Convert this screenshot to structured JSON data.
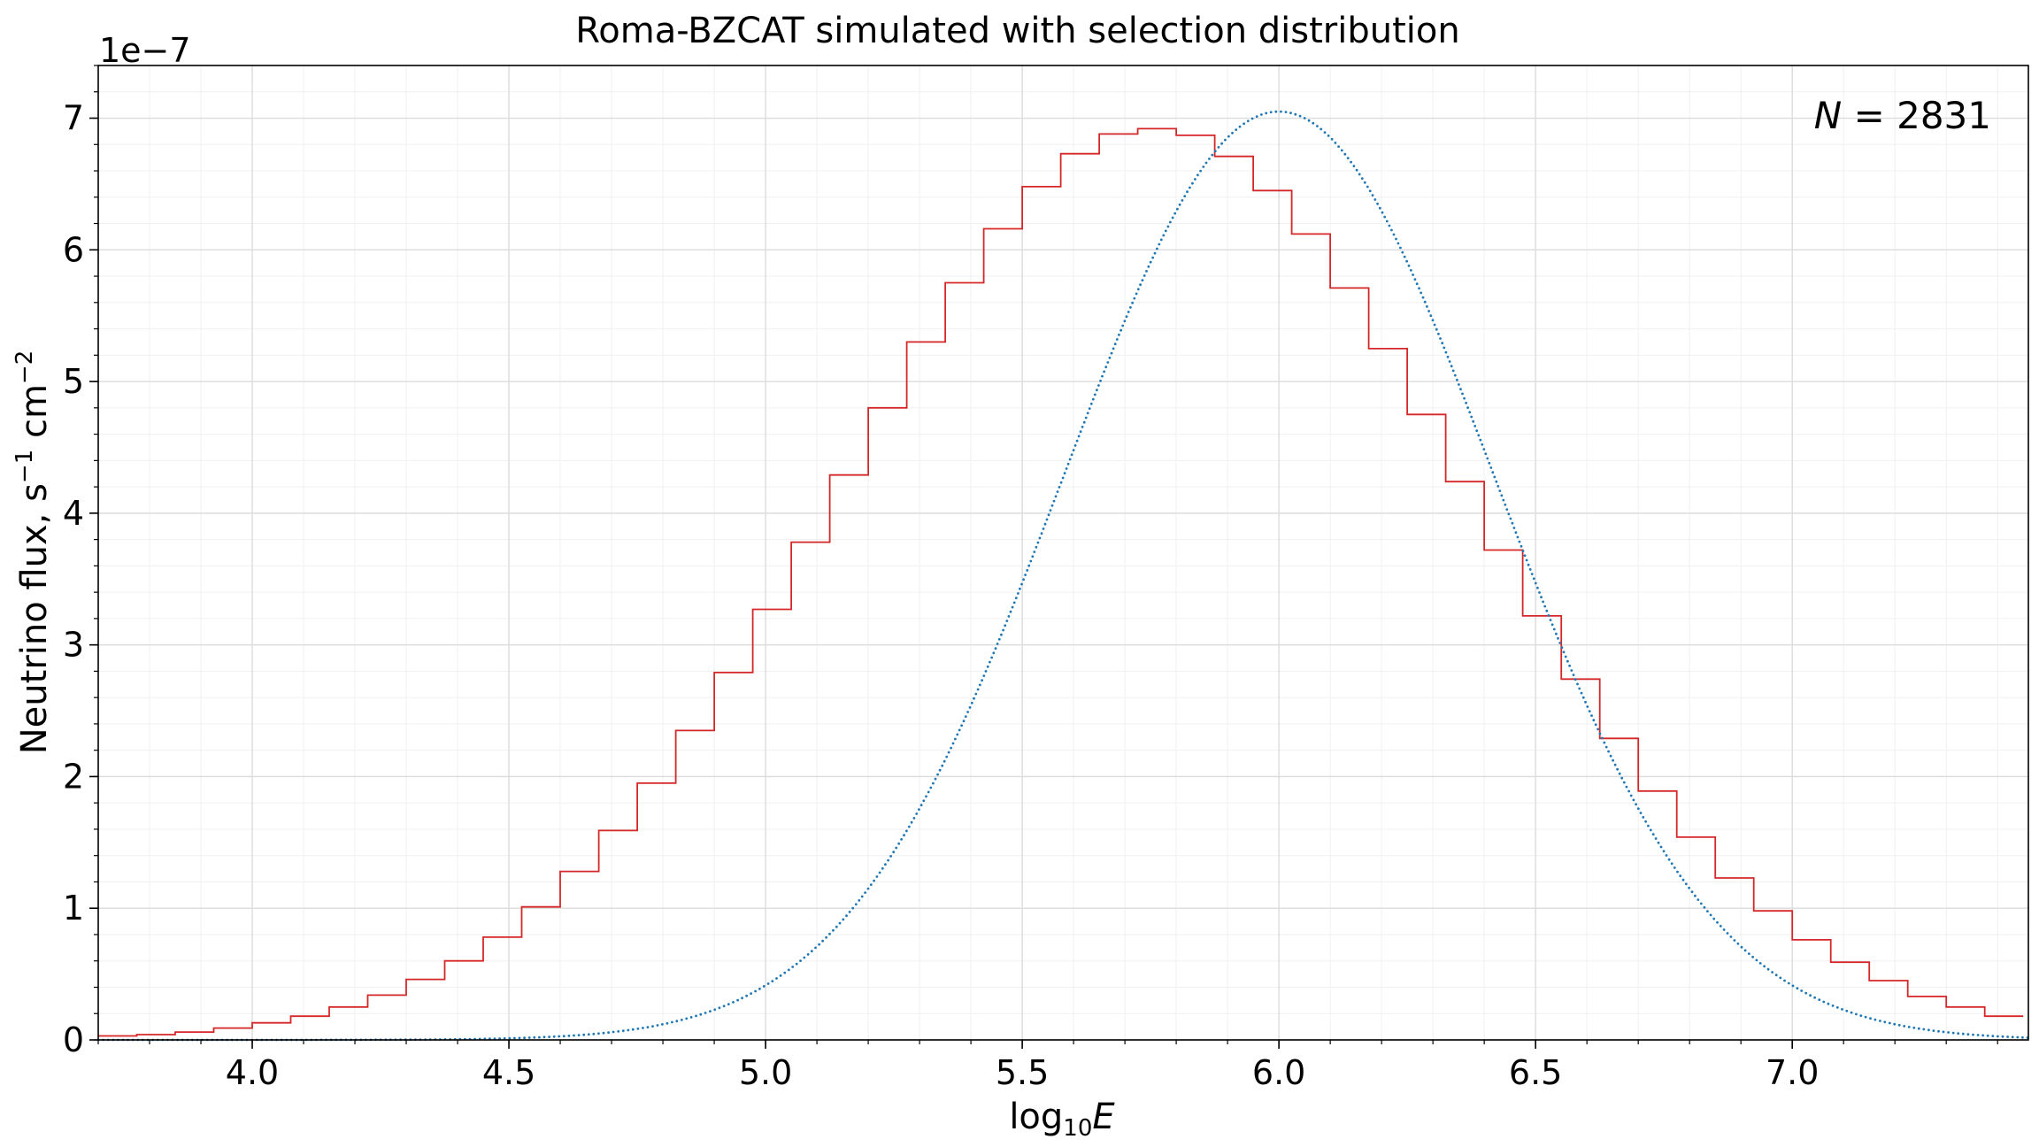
{
  "chart_data": {
    "type": "line",
    "title": "Roma-BZCAT simulated with selection distribution",
    "xlabel": {
      "base": "log",
      "subscript": "10",
      "var": "E"
    },
    "ylabel": {
      "main": "Neutrino flux, s",
      "sup1": "−1",
      "mid": " cm",
      "sup2": "−2"
    },
    "y_offset_label": "1e−7",
    "y_scale": 1e-07,
    "xlim": [
      3.7,
      7.46
    ],
    "ylim": [
      0,
      7.4
    ],
    "x_ticks": [
      4.0,
      4.5,
      5.0,
      5.5,
      6.0,
      6.5,
      7.0
    ],
    "x_tick_labels": [
      "4.0",
      "4.5",
      "5.0",
      "5.5",
      "6.0",
      "6.5",
      "7.0"
    ],
    "y_ticks": [
      0,
      1,
      2,
      3,
      4,
      5,
      6,
      7
    ],
    "y_tick_labels": [
      "0",
      "1",
      "2",
      "3",
      "4",
      "5",
      "6",
      "7"
    ],
    "grid": true,
    "minor_grid": true,
    "annotation": {
      "var": "N",
      "text": " = 2831",
      "position": "top-right"
    },
    "histogram": {
      "color": "#d62728",
      "style": "step",
      "bin_start": 3.7,
      "bin_width": 0.075,
      "values": [
        0.03,
        0.04,
        0.06,
        0.09,
        0.13,
        0.18,
        0.25,
        0.34,
        0.46,
        0.6,
        0.78,
        1.01,
        1.28,
        1.59,
        1.95,
        2.35,
        2.79,
        3.27,
        3.78,
        4.29,
        4.8,
        5.3,
        5.75,
        6.16,
        6.48,
        6.73,
        6.88,
        6.92,
        6.87,
        6.71,
        6.45,
        6.12,
        5.71,
        5.25,
        4.75,
        4.24,
        3.72,
        3.22,
        2.74,
        2.29,
        1.89,
        1.54,
        1.23,
        0.98,
        0.76,
        0.59,
        0.45,
        0.33,
        0.25,
        0.18
      ]
    },
    "gaussian_curve": {
      "color": "#1f77b4",
      "style": "dotted",
      "peak": 7.05,
      "mean": 6.0,
      "sigma": 0.42
    }
  }
}
